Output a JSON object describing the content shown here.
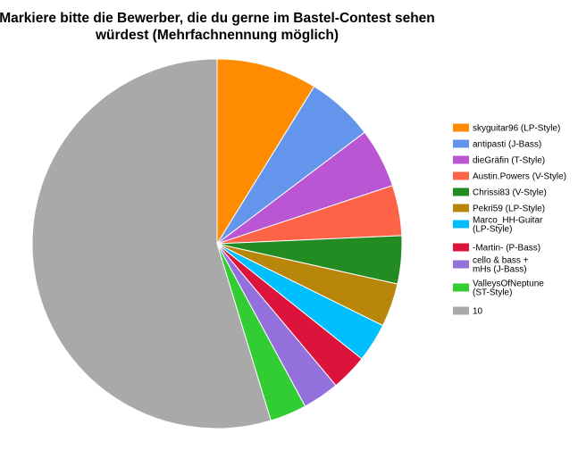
{
  "chart_data": {
    "type": "pie",
    "title_lines": [
      "Markiere bitte die Bewerber, die du gerne im Bastel-Contest sehen",
      "würdest (Mehrfachnennung möglich)"
    ],
    "legend_position": "right",
    "start_direction": "clockwise from top",
    "slices": [
      {
        "label_lines": [
          "skyguitar96 (LP-Style)"
        ],
        "value": 8.8,
        "color": "#FF8C00"
      },
      {
        "label_lines": [
          "antipasti (J-Bass)"
        ],
        "value": 5.9,
        "color": "#6495ED"
      },
      {
        "label_lines": [
          "dieGräfin  (T-Style)"
        ],
        "value": 5.2,
        "color": "#BA55D3"
      },
      {
        "label_lines": [
          "Austin.Powers (V-Style)"
        ],
        "value": 4.4,
        "color": "#FF6347"
      },
      {
        "label_lines": [
          "Chrissi83 (V-Style)"
        ],
        "value": 4.2,
        "color": "#228B22"
      },
      {
        "label_lines": [
          "Pekri59 (LP-Style)"
        ],
        "value": 3.8,
        "color": "#B8860B"
      },
      {
        "label_lines": [
          "Marco_HH-Guitar",
          "(LP-Style)"
        ],
        "value": 3.4,
        "color": "#00BFFF"
      },
      {
        "label_lines": [
          "-Martin- (P-Bass)"
        ],
        "value": 3.2,
        "color": "#DC143C"
      },
      {
        "label_lines": [
          "cello & bass +",
          "mHs (J-Bass)"
        ],
        "value": 3.2,
        "color": "#9370DB"
      },
      {
        "label_lines": [
          "ValleysOfNeptune",
          "(ST-Style)"
        ],
        "value": 3.2,
        "color": "#32CD32"
      },
      {
        "label_lines": [
          "10"
        ],
        "value": 54.7,
        "color": "#A9A9A9"
      }
    ]
  }
}
